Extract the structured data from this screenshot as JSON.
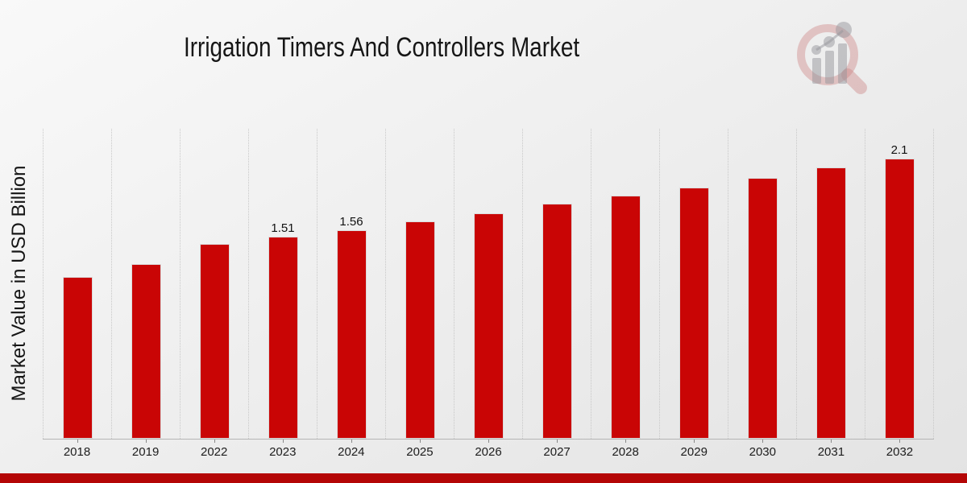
{
  "page": {
    "footer_band_color": "#b40606"
  },
  "logo": {
    "icon": "magnifier-bar-chart-logo",
    "ring_color": "rgba(203,128,128,0.40)",
    "bars_color": "rgba(150,150,155,0.50)"
  },
  "chart_data": {
    "type": "bar",
    "title": "Irrigation Timers And Controllers Market",
    "xlabel": "",
    "ylabel": "Market Value in USD Billion",
    "categories": [
      "2018",
      "2019",
      "2022",
      "2023",
      "2024",
      "2025",
      "2026",
      "2027",
      "2028",
      "2029",
      "2030",
      "2031",
      "2032"
    ],
    "values": [
      1.21,
      1.31,
      1.46,
      1.51,
      1.56,
      1.63,
      1.69,
      1.76,
      1.82,
      1.88,
      1.95,
      2.03,
      2.1
    ],
    "data_labels": [
      "",
      "",
      "",
      "1.51",
      "1.56",
      "",
      "",
      "",
      "",
      "",
      "",
      "",
      "2.1"
    ],
    "ylim": [
      0,
      2.32
    ],
    "bar_color": "#c90505",
    "grid": "vertical-dotted",
    "gridline_color": "#c8c8c8",
    "legend": "none"
  }
}
